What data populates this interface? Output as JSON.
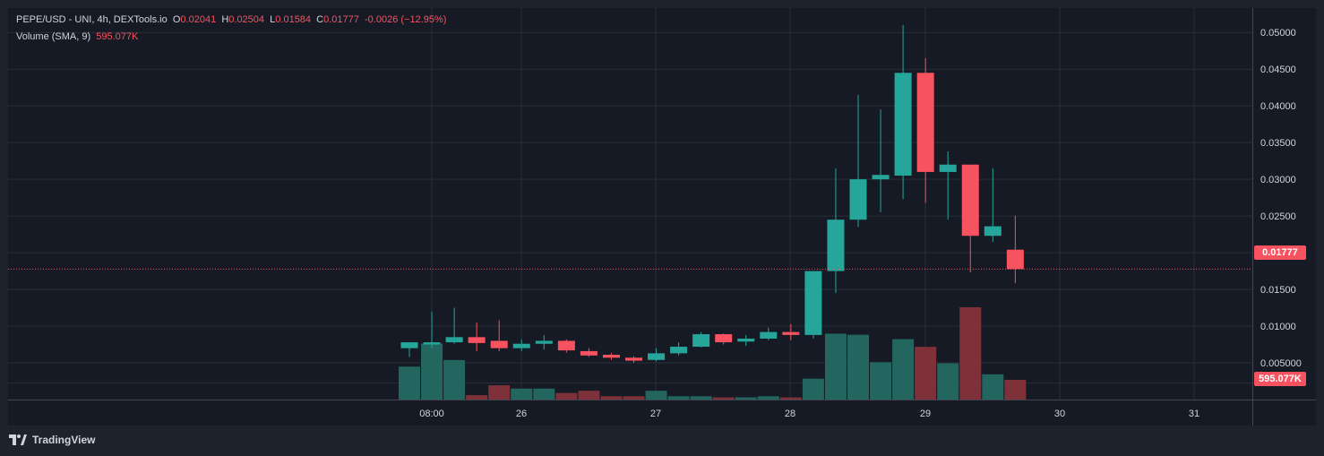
{
  "legend": {
    "symbol": "PEPE/USD - UNI, 4h, DEXTools.io",
    "open_label": "O",
    "open": "0.02041",
    "high_label": "H",
    "high": "0.02504",
    "low_label": "L",
    "low": "0.01584",
    "close_label": "C",
    "close": "0.01777",
    "change": "-0.0026 (−12.95%)",
    "volume_label": "Volume (SMA, 9)",
    "volume_value": "595.077K"
  },
  "last_price_tag": "0.01777",
  "last_volume_tag": "595.077K",
  "branding": "TradingView",
  "colors": {
    "up": "#26a69a",
    "down": "#f7525f",
    "vol_up": "#22665f",
    "vol_down": "#7e3139",
    "bg": "#161a25",
    "frame": "#1e222d",
    "grid": "#2a2e39",
    "text": "#d1d4dc"
  },
  "chart_data": {
    "type": "candlestick",
    "y_ticks": [
      "0.05000",
      "0.04500",
      "0.04000",
      "0.03500",
      "0.03000",
      "0.02500",
      "0.02000",
      "0.01500",
      "0.01000",
      "0.005000"
    ],
    "x_ticks": [
      "08:00",
      "26",
      "27",
      "28",
      "29",
      "30",
      "31"
    ],
    "ylim": [
      0,
      0.053
    ],
    "grid": true,
    "candles": [
      {
        "o": 0.007,
        "h": 0.0075,
        "l": 0.0058,
        "c": 0.0078
      },
      {
        "o": 0.0075,
        "h": 0.012,
        "l": 0.007,
        "c": 0.0078
      },
      {
        "o": 0.0078,
        "h": 0.0125,
        "l": 0.0076,
        "c": 0.0085
      },
      {
        "o": 0.0085,
        "h": 0.0105,
        "l": 0.0066,
        "c": 0.0077
      },
      {
        "o": 0.008,
        "h": 0.0108,
        "l": 0.0066,
        "c": 0.007
      },
      {
        "o": 0.007,
        "h": 0.0082,
        "l": 0.0066,
        "c": 0.0076
      },
      {
        "o": 0.0076,
        "h": 0.0088,
        "l": 0.0068,
        "c": 0.008
      },
      {
        "o": 0.008,
        "h": 0.0082,
        "l": 0.0064,
        "c": 0.0067
      },
      {
        "o": 0.0066,
        "h": 0.007,
        "l": 0.0058,
        "c": 0.006
      },
      {
        "o": 0.0061,
        "h": 0.0063,
        "l": 0.0054,
        "c": 0.0057
      },
      {
        "o": 0.0057,
        "h": 0.0059,
        "l": 0.005,
        "c": 0.0053
      },
      {
        "o": 0.0054,
        "h": 0.007,
        "l": 0.0052,
        "c": 0.0063
      },
      {
        "o": 0.0063,
        "h": 0.0078,
        "l": 0.006,
        "c": 0.0072
      },
      {
        "o": 0.0072,
        "h": 0.0092,
        "l": 0.0071,
        "c": 0.0089
      },
      {
        "o": 0.0089,
        "h": 0.009,
        "l": 0.0075,
        "c": 0.0078
      },
      {
        "o": 0.0079,
        "h": 0.0088,
        "l": 0.0073,
        "c": 0.0083
      },
      {
        "o": 0.0083,
        "h": 0.0098,
        "l": 0.0081,
        "c": 0.0092
      },
      {
        "o": 0.0092,
        "h": 0.0103,
        "l": 0.0081,
        "c": 0.0088
      },
      {
        "o": 0.0088,
        "h": 0.0175,
        "l": 0.0083,
        "c": 0.0175
      },
      {
        "o": 0.0175,
        "h": 0.0315,
        "l": 0.0145,
        "c": 0.0245
      },
      {
        "o": 0.0245,
        "h": 0.0415,
        "l": 0.0235,
        "c": 0.03
      },
      {
        "o": 0.03,
        "h": 0.0395,
        "l": 0.0255,
        "c": 0.0306
      },
      {
        "o": 0.0305,
        "h": 0.051,
        "l": 0.0273,
        "c": 0.0445
      },
      {
        "o": 0.0445,
        "h": 0.0465,
        "l": 0.0268,
        "c": 0.031
      },
      {
        "o": 0.031,
        "h": 0.0338,
        "l": 0.0245,
        "c": 0.032
      },
      {
        "o": 0.032,
        "h": 0.032,
        "l": 0.0173,
        "c": 0.0223
      },
      {
        "o": 0.0223,
        "h": 0.0315,
        "l": 0.0215,
        "c": 0.0236
      },
      {
        "o": 0.02041,
        "h": 0.02504,
        "l": 0.01584,
        "c": 0.01777
      }
    ],
    "volume": [
      30,
      51,
      36,
      4,
      13,
      10,
      10,
      6,
      8,
      3,
      3,
      8,
      3,
      3,
      2,
      2,
      3,
      2,
      19,
      60,
      59,
      34,
      55,
      48,
      33,
      84,
      23,
      18
    ]
  }
}
